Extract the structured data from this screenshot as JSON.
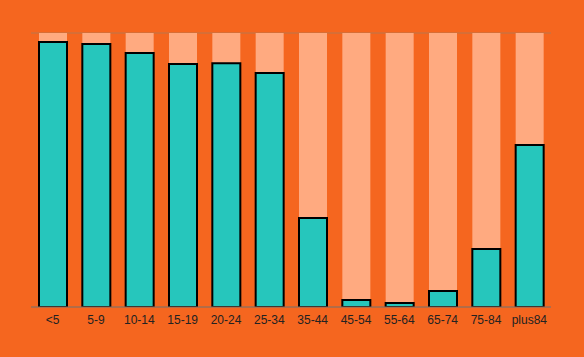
{
  "chart_data": {
    "type": "bar",
    "categories": [
      "<5",
      "5-9",
      "10-14",
      "15-19",
      "20-24",
      "25-34",
      "35-44",
      "45-54",
      "55-64",
      "65-74",
      "75-84",
      "plus84"
    ],
    "values": [
      96.7,
      96,
      92.7,
      88.7,
      89,
      85.4,
      32.5,
      2.6,
      1.5,
      5.8,
      21.2,
      59.1
    ],
    "color": "#26c6bc",
    "ylim": [
      0,
      100
    ],
    "yticks": [
      0,
      10,
      20,
      30,
      40,
      50,
      60,
      70,
      80,
      90,
      100
    ],
    "grid": true,
    "tick_labels": "x"
  }
}
